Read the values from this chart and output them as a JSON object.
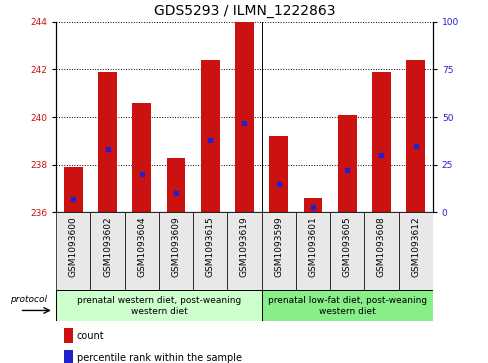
{
  "title": "GDS5293 / ILMN_1222863",
  "samples": [
    "GSM1093600",
    "GSM1093602",
    "GSM1093604",
    "GSM1093609",
    "GSM1093615",
    "GSM1093619",
    "GSM1093599",
    "GSM1093601",
    "GSM1093605",
    "GSM1093608",
    "GSM1093612"
  ],
  "bar_values": [
    237.9,
    241.9,
    240.6,
    238.3,
    242.4,
    244.1,
    239.2,
    236.6,
    240.1,
    241.9,
    242.4
  ],
  "percentile_values": [
    7,
    33,
    20,
    10,
    38,
    47,
    15,
    3,
    22,
    30,
    35
  ],
  "y_min": 236,
  "y_max": 244,
  "y_ticks": [
    236,
    238,
    240,
    242,
    244
  ],
  "y2_ticks": [
    0,
    25,
    50,
    75,
    100
  ],
  "bar_color": "#cc1111",
  "percentile_color": "#2222cc",
  "bar_width": 0.55,
  "group1_n": 6,
  "group2_n": 5,
  "group1_label": "prenatal western diet, post-weaning\nwestern diet",
  "group2_label": "prenatal low-fat diet, post-weaning\nwestern diet",
  "group1_color": "#ccffcc",
  "group2_color": "#88ee88",
  "bg_color": "#e8e8e8",
  "protocol_label": "protocol",
  "legend_count": "count",
  "legend_percentile": "percentile rank within the sample",
  "title_fontsize": 10,
  "tick_fontsize": 6.5,
  "label_fontsize": 7
}
